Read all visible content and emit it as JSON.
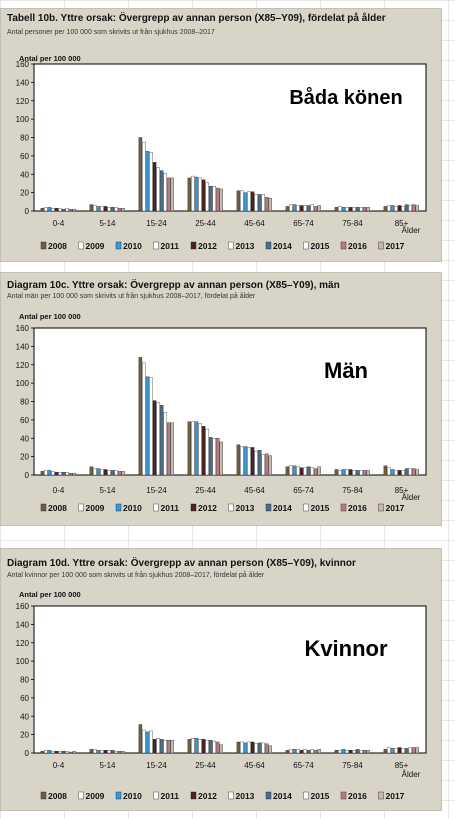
{
  "colors": {
    "2008": "#6d5f3f",
    "2009": "#ffffff",
    "2010": "#3a9ad9",
    "2011": "#ffffff",
    "2012": "#4a2323",
    "2013": "#ffffff",
    "2014": "#4d6e86",
    "2015": "#ffffff",
    "2016": "#b87c80",
    "2017": "#c4bab0"
  },
  "chart_data": [
    {
      "type": "bar",
      "title": "Tabell 10b. Yttre orsak: Övergrepp av annan person (X85–Y09), fördelat på ålder",
      "subtitle": "Antal personer per 100 000 som skrivits ut från sjukhus 2008–2017",
      "ylabel": "Antal per 100 000",
      "annotation": "Båda könen",
      "x_suffix": "Ålder",
      "ylim": [
        0,
        160
      ],
      "yticks": [
        0,
        20,
        40,
        60,
        80,
        100,
        120,
        140,
        160
      ],
      "categories": [
        "0-4",
        "5-14",
        "15-24",
        "25-44",
        "45-64",
        "65-74",
        "75-84",
        "85+"
      ],
      "series": [
        {
          "name": "2008",
          "values": [
            3,
            7,
            80,
            36,
            22,
            5,
            4,
            5
          ]
        },
        {
          "name": "2009",
          "values": [
            4,
            6,
            75,
            38,
            22,
            7,
            5,
            6
          ]
        },
        {
          "name": "2010",
          "values": [
            4,
            5,
            65,
            37,
            20,
            7,
            4,
            6
          ]
        },
        {
          "name": "2011",
          "values": [
            3,
            5,
            64,
            36,
            21,
            6,
            4,
            5
          ]
        },
        {
          "name": "2012",
          "values": [
            3,
            5,
            53,
            34,
            21,
            6,
            4,
            6
          ]
        },
        {
          "name": "2013",
          "values": [
            3,
            4,
            47,
            31,
            18,
            6,
            4,
            5
          ]
        },
        {
          "name": "2014",
          "values": [
            2,
            4,
            44,
            27,
            18,
            6,
            4,
            7
          ]
        },
        {
          "name": "2015",
          "values": [
            3,
            4,
            41,
            27,
            18,
            7,
            4,
            6
          ]
        },
        {
          "name": "2016",
          "values": [
            2,
            3,
            36,
            25,
            15,
            5,
            4,
            7
          ]
        },
        {
          "name": "2017",
          "values": [
            2,
            3,
            36,
            24,
            14,
            6,
            4,
            6
          ]
        }
      ]
    },
    {
      "type": "bar",
      "title": "Diagram 10c. Yttre orsak: Övergrepp av annan person (X85–Y09), män",
      "subtitle": "Antal män per 100 000 som skrivits ut från sjukhus 2008–2017, fördelat på ålder",
      "ylabel": "Antal per 100 000",
      "annotation": "Män",
      "x_suffix": "Ålder",
      "ylim": [
        0,
        160
      ],
      "yticks": [
        0,
        20,
        40,
        60,
        80,
        100,
        120,
        140,
        160
      ],
      "categories": [
        "0-4",
        "5-14",
        "15-24",
        "25-44",
        "45-64",
        "65-74",
        "75-84",
        "85+"
      ],
      "series": [
        {
          "name": "2008",
          "values": [
            4,
            9,
            128,
            58,
            33,
            9,
            6,
            10
          ]
        },
        {
          "name": "2009",
          "values": [
            5,
            7,
            122,
            58,
            31,
            10,
            5,
            8
          ]
        },
        {
          "name": "2010",
          "values": [
            5,
            7,
            107,
            58,
            31,
            10,
            6,
            6
          ]
        },
        {
          "name": "2011",
          "values": [
            4,
            6,
            106,
            56,
            30,
            9,
            6,
            5
          ]
        },
        {
          "name": "2012",
          "values": [
            3,
            6,
            81,
            53,
            30,
            8,
            6,
            5
          ]
        },
        {
          "name": "2013",
          "values": [
            3,
            5,
            79,
            50,
            26,
            8,
            5,
            5
          ]
        },
        {
          "name": "2014",
          "values": [
            3,
            5,
            76,
            41,
            27,
            9,
            5,
            7
          ]
        },
        {
          "name": "2015",
          "values": [
            3,
            5,
            68,
            40,
            22,
            8,
            5,
            7
          ]
        },
        {
          "name": "2016",
          "values": [
            2,
            4,
            57,
            40,
            23,
            7,
            5,
            7
          ]
        },
        {
          "name": "2017",
          "values": [
            2,
            4,
            57,
            36,
            21,
            9,
            5,
            6
          ]
        }
      ]
    },
    {
      "type": "bar",
      "title": "Diagram 10d. Yttre orsak: Övergrepp av annan person (X85–Y09), kvinnor",
      "subtitle": "Antal kvinnor per 100 000 som skrivits ut från sjukhus 2008–2017, fördelat på ålder",
      "ylabel": "Antal per 100 000",
      "annotation": "Kvinnor",
      "x_suffix": "Ålder",
      "ylim": [
        0,
        160
      ],
      "yticks": [
        0,
        20,
        40,
        60,
        80,
        100,
        120,
        140,
        160
      ],
      "categories": [
        "0-4",
        "5-14",
        "15-24",
        "25-44",
        "45-64",
        "65-74",
        "75-84",
        "85+"
      ],
      "series": [
        {
          "name": "2008",
          "values": [
            2,
            4,
            31,
            15,
            12,
            3,
            3,
            4
          ]
        },
        {
          "name": "2009",
          "values": [
            3,
            4,
            25,
            16,
            12,
            4,
            3,
            6
          ]
        },
        {
          "name": "2010",
          "values": [
            3,
            3,
            23,
            16,
            11,
            4,
            4,
            5
          ]
        },
        {
          "name": "2011",
          "values": [
            2,
            3,
            24,
            15,
            12,
            4,
            3,
            5
          ]
        },
        {
          "name": "2012",
          "values": [
            2,
            3,
            15,
            15,
            12,
            3,
            3,
            6
          ]
        },
        {
          "name": "2013",
          "values": [
            2,
            3,
            16,
            14,
            10,
            4,
            3,
            5
          ]
        },
        {
          "name": "2014",
          "values": [
            2,
            3,
            15,
            14,
            11,
            3,
            4,
            5
          ]
        },
        {
          "name": "2015",
          "values": [
            2,
            2,
            14,
            13,
            11,
            4,
            3,
            6
          ]
        },
        {
          "name": "2016",
          "values": [
            1,
            2,
            14,
            12,
            10,
            3,
            3,
            6
          ]
        },
        {
          "name": "2017",
          "values": [
            2,
            2,
            14,
            9,
            8,
            4,
            3,
            6
          ]
        }
      ]
    }
  ]
}
